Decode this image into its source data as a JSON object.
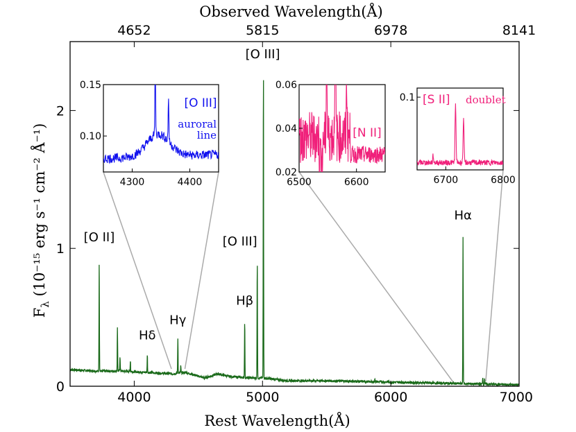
{
  "chart_data": {
    "type": "line",
    "colors": {
      "main": "#1a6a1a",
      "blue": "#1010ee",
      "pink": "#f0207a",
      "guide": "#aaaaaa"
    },
    "xlabel": "Rest Wavelength(Å)",
    "ylabel_prefix": "F",
    "ylabel_sub": "λ",
    "ylabel_units": "(10⁻¹⁵ erg s⁻¹ cm⁻² Å⁻¹)",
    "top_xlabel": "Observed Wavelength(Å)",
    "xlim": [
      3500,
      7000
    ],
    "ylim": [
      0,
      2.5
    ],
    "x_ticks": [
      "4000",
      "5000",
      "6000",
      "7000"
    ],
    "x_tick_values": [
      4000,
      5000,
      6000,
      7000
    ],
    "y_ticks": [
      "0",
      "1",
      "2"
    ],
    "y_tick_values": [
      0,
      1,
      2
    ],
    "top_ticks": [
      "4652",
      "5815",
      "6978",
      "8141"
    ],
    "top_tick_values": [
      4000,
      5000,
      6000,
      7000
    ],
    "continuum": [
      {
        "x": 3500,
        "y": 0.12
      },
      {
        "x": 3700,
        "y": 0.11
      },
      {
        "x": 3900,
        "y": 0.11
      },
      {
        "x": 4100,
        "y": 0.1
      },
      {
        "x": 4300,
        "y": 0.09
      },
      {
        "x": 4400,
        "y": 0.1
      },
      {
        "x": 4550,
        "y": 0.06
      },
      {
        "x": 4650,
        "y": 0.09
      },
      {
        "x": 4750,
        "y": 0.07
      },
      {
        "x": 4900,
        "y": 0.06
      },
      {
        "x": 5000,
        "y": 0.06
      },
      {
        "x": 5200,
        "y": 0.04
      },
      {
        "x": 5500,
        "y": 0.04
      },
      {
        "x": 6000,
        "y": 0.03
      },
      {
        "x": 6500,
        "y": 0.02
      },
      {
        "x": 7000,
        "y": 0.01
      }
    ],
    "lines": [
      {
        "x": 3727,
        "peak": 0.93,
        "label": "[O II]"
      },
      {
        "x": 3869,
        "peak": 0.43,
        "label": ""
      },
      {
        "x": 3889,
        "peak": 0.22,
        "label": ""
      },
      {
        "x": 3970,
        "peak": 0.19,
        "label": ""
      },
      {
        "x": 4102,
        "peak": 0.23,
        "label": "Hδ"
      },
      {
        "x": 4340,
        "peak": 0.35,
        "label": "Hγ"
      },
      {
        "x": 4363,
        "peak": 0.15,
        "label": ""
      },
      {
        "x": 4861,
        "peak": 0.48,
        "label": "Hβ"
      },
      {
        "x": 4959,
        "peak": 0.92,
        "label": "[O III]"
      },
      {
        "x": 5007,
        "peak": 2.33,
        "label": "[O III]"
      },
      {
        "x": 5876,
        "peak": 0.05,
        "label": ""
      },
      {
        "x": 6300,
        "peak": 0.03,
        "label": ""
      },
      {
        "x": 6563,
        "peak": 1.08,
        "label": "Hα"
      },
      {
        "x": 6717,
        "peak": 0.07,
        "label": ""
      },
      {
        "x": 6731,
        "peak": 0.06,
        "label": ""
      }
    ],
    "insets": [
      {
        "name": "oiii-auroral",
        "color": "blue",
        "xlim": [
          4250,
          4450
        ],
        "ylim": [
          0.065,
          0.15
        ],
        "x_ticks": [
          "4300",
          "4400"
        ],
        "x_tick_values": [
          4300,
          4400
        ],
        "y_ticks": [
          "0.15",
          "0.10"
        ],
        "y_tick_values": [
          0.15,
          0.1
        ],
        "label": "[O III]",
        "note_lines": [
          "auroral",
          "line"
        ],
        "zoom_range": [
          4290,
          4395
        ]
      },
      {
        "name": "nii-halpha",
        "color": "pink",
        "xlim": [
          6500,
          6650
        ],
        "ylim": [
          0.02,
          0.06
        ],
        "x_ticks": [
          "6500",
          "6600"
        ],
        "x_tick_values": [
          6500,
          6600
        ],
        "y_ticks": [
          "0.06",
          "0.04",
          "0.02"
        ],
        "y_tick_values": [
          0.06,
          0.04,
          0.02
        ],
        "label": "[N II]",
        "note_lines": [],
        "zoom_range": [
          6490,
          6490
        ]
      },
      {
        "name": "sii-doublet",
        "color": "pink",
        "xlim": [
          6650,
          6800
        ],
        "ylim": [
          0.02,
          0.11
        ],
        "x_ticks": [
          "6700",
          "6800"
        ],
        "x_tick_values": [
          6700,
          6800
        ],
        "y_ticks": [
          "0.1"
        ],
        "y_tick_values": [
          0.1
        ],
        "label": "[S II]",
        "note_lines": [
          "doublet"
        ],
        "zoom_range": [
          6740,
          6740
        ]
      }
    ]
  }
}
